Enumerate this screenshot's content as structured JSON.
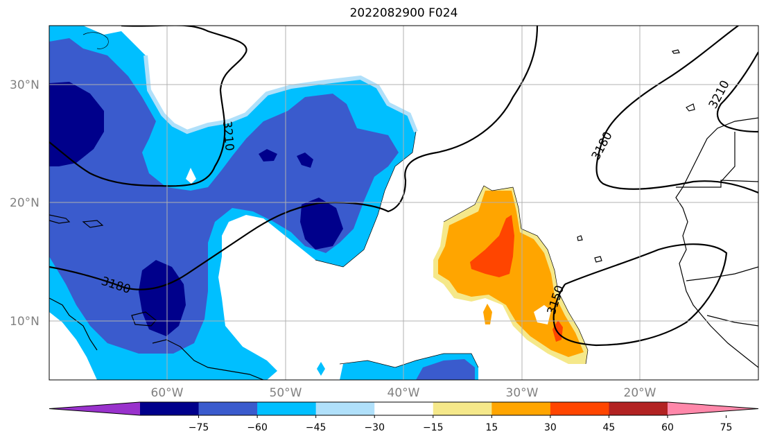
{
  "title": "2022082900 F024",
  "map": {
    "lat_labels": [
      "30°N",
      "20°N",
      "10°N"
    ],
    "lon_labels": [
      "60°W",
      "50°W",
      "40°W",
      "30°W",
      "20°W"
    ],
    "contour_labels": [
      "3210",
      "3180",
      "3150",
      "3180",
      "3210"
    ]
  },
  "colorbar": {
    "ticks": [
      "−75",
      "−60",
      "−45",
      "−30",
      "−15",
      "15",
      "30",
      "45",
      "60",
      "75"
    ],
    "colors": [
      "#9932cc",
      "#00008b",
      "#3a5bcd",
      "#00bfff",
      "#b0e0fa",
      "#ffffff",
      "#f5e88a",
      "#ffa500",
      "#ff4500",
      "#b22222",
      "#ff88aa"
    ]
  }
}
